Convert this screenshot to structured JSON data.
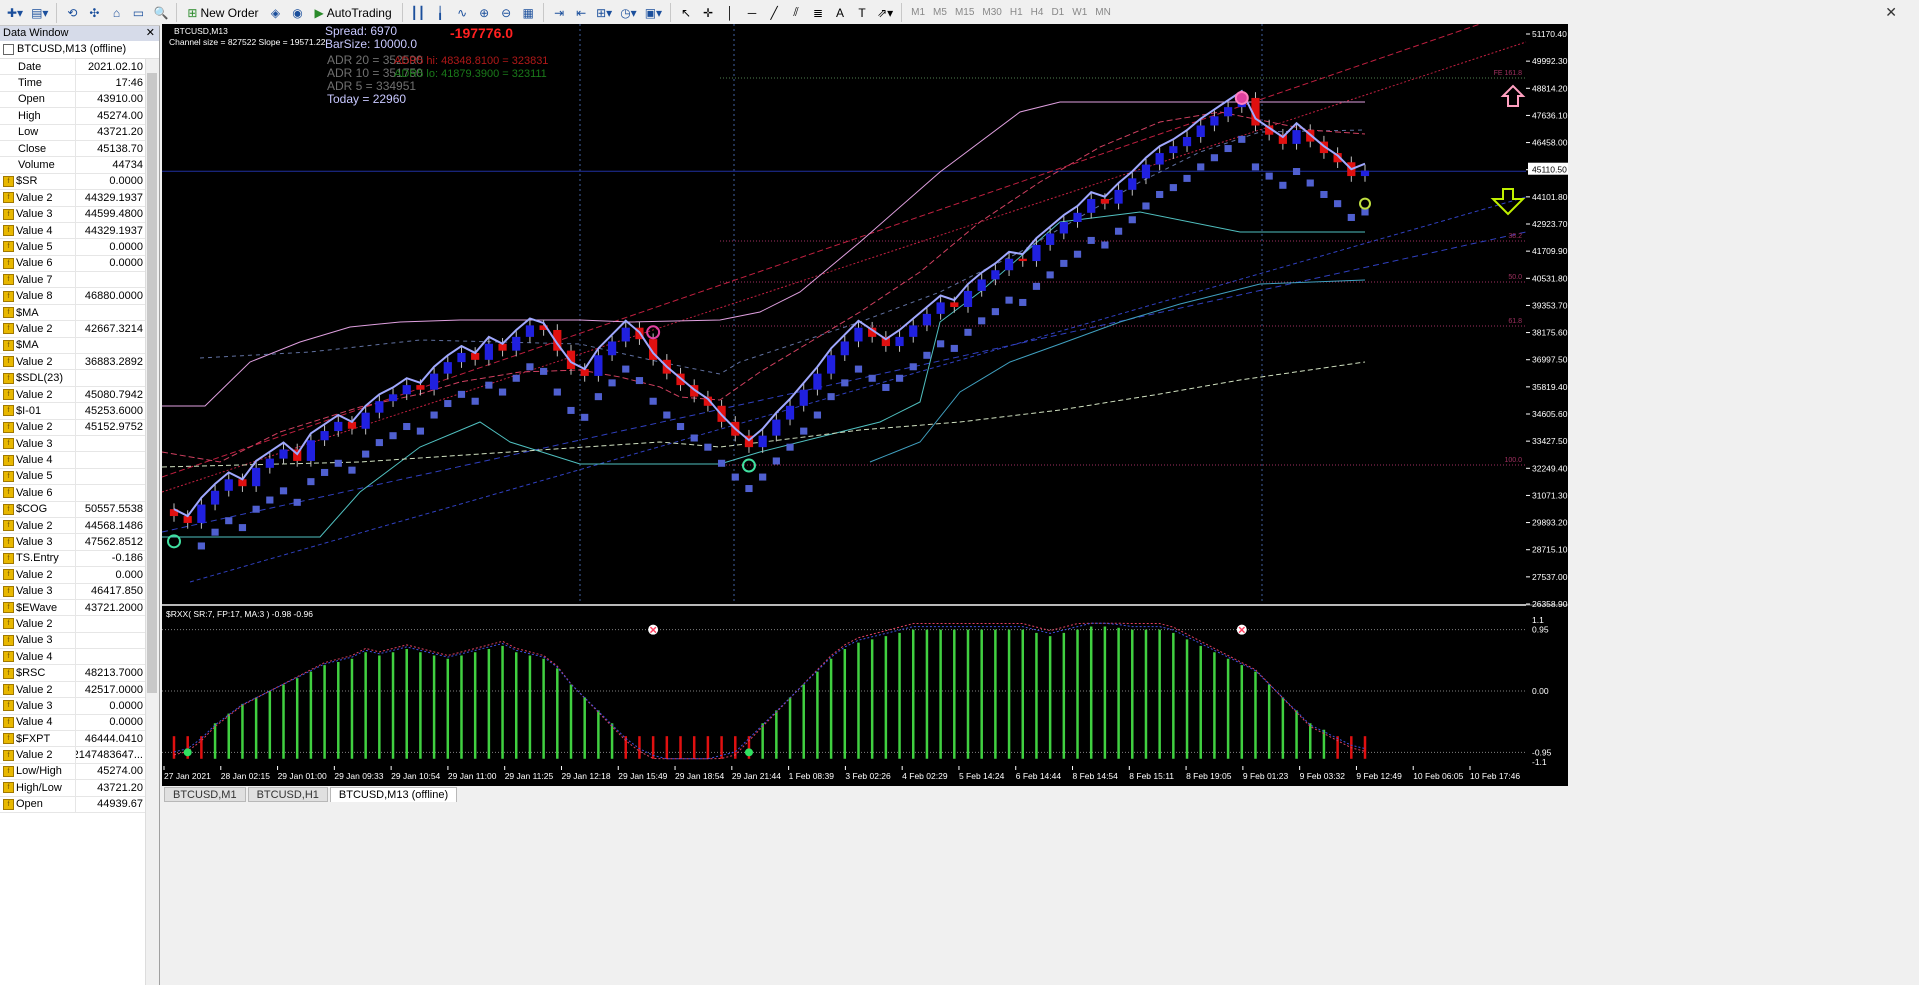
{
  "toolbar": {
    "new_order": "New Order",
    "auto_trading": "AutoTrading",
    "timeframes": [
      "M1",
      "M5",
      "M15",
      "M30",
      "H1",
      "H4",
      "D1",
      "W1",
      "MN"
    ]
  },
  "data_window": {
    "title": "Data Window",
    "symbol": "BTCUSD,M13 (offline)",
    "rows": [
      {
        "name": "Date",
        "value": "2021.02.10",
        "icon": false
      },
      {
        "name": "Time",
        "value": "17:46",
        "icon": false
      },
      {
        "name": "Open",
        "value": "43910.00",
        "icon": false
      },
      {
        "name": "High",
        "value": "45274.00",
        "icon": false
      },
      {
        "name": "Low",
        "value": "43721.20",
        "icon": false
      },
      {
        "name": "Close",
        "value": "45138.70",
        "icon": false
      },
      {
        "name": "Volume",
        "value": "44734",
        "icon": false
      },
      {
        "name": "$SR",
        "value": "0.0000",
        "icon": true
      },
      {
        "name": "Value 2",
        "value": "44329.1937",
        "icon": true
      },
      {
        "name": "Value 3",
        "value": "44599.4800",
        "icon": true
      },
      {
        "name": "Value 4",
        "value": "44329.1937",
        "icon": true
      },
      {
        "name": "Value 5",
        "value": "0.0000",
        "icon": true
      },
      {
        "name": "Value 6",
        "value": "0.0000",
        "icon": true
      },
      {
        "name": "Value 7",
        "value": "",
        "icon": true
      },
      {
        "name": "Value 8",
        "value": "46880.0000",
        "icon": true
      },
      {
        "name": "$MA",
        "value": "",
        "icon": true
      },
      {
        "name": "Value 2",
        "value": "42667.3214",
        "icon": true
      },
      {
        "name": "$MA",
        "value": "",
        "icon": true
      },
      {
        "name": "Value 2",
        "value": "36883.2892",
        "icon": true
      },
      {
        "name": "$SDL(23)",
        "value": "",
        "icon": true
      },
      {
        "name": "Value 2",
        "value": "45080.7942",
        "icon": true
      },
      {
        "name": "$I-01",
        "value": "45253.6000",
        "icon": true
      },
      {
        "name": "Value 2",
        "value": "45152.9752",
        "icon": true
      },
      {
        "name": "Value 3",
        "value": "",
        "icon": true
      },
      {
        "name": "Value 4",
        "value": "",
        "icon": true
      },
      {
        "name": "Value 5",
        "value": "",
        "icon": true
      },
      {
        "name": "Value 6",
        "value": "",
        "icon": true
      },
      {
        "name": "$COG",
        "value": "50557.5538",
        "icon": true
      },
      {
        "name": "Value 2",
        "value": "44568.1486",
        "icon": true
      },
      {
        "name": "Value 3",
        "value": "47562.8512",
        "icon": true
      },
      {
        "name": "TS.Entry",
        "value": "-0.186",
        "icon": true
      },
      {
        "name": "Value 2",
        "value": "0.000",
        "icon": true
      },
      {
        "name": "Value 3",
        "value": "46417.850",
        "icon": true
      },
      {
        "name": "$EWave",
        "value": "43721.2000",
        "icon": true
      },
      {
        "name": "Value 2",
        "value": "",
        "icon": true
      },
      {
        "name": "Value 3",
        "value": "",
        "icon": true
      },
      {
        "name": "Value 4",
        "value": "",
        "icon": true
      },
      {
        "name": "$RSC",
        "value": "48213.7000",
        "icon": true
      },
      {
        "name": "Value 2",
        "value": "42517.0000",
        "icon": true
      },
      {
        "name": "Value 3",
        "value": "0.0000",
        "icon": true
      },
      {
        "name": "Value 4",
        "value": "0.0000",
        "icon": true
      },
      {
        "name": "$FXPT",
        "value": "46444.0410",
        "icon": true
      },
      {
        "name": "Value 2",
        "value": "2147483647...",
        "icon": true
      },
      {
        "name": "Low/High",
        "value": "45274.00",
        "icon": true
      },
      {
        "name": "High/Low",
        "value": "43721.20",
        "icon": true
      },
      {
        "name": "Open",
        "value": "44939.67",
        "icon": true
      }
    ]
  },
  "chart": {
    "symbol_label": "BTCUSD,M13",
    "channel_label": "Channel size = 827522 Slope = 19571.22",
    "spread": "Spread: 6970",
    "barsize": "BarSize: 10000.0",
    "pnl": "-197776.0",
    "adr20": "ADR 20 = 352590",
    "adr10": "ADR 10 = 351750",
    "adr5": "ADR  5  = 334951",
    "today": "Today     = 22960",
    "adr_hi": "ADR5 hi: 48348.8100 = 323831",
    "adr_lo": "ADR5 lo: 41879.3900 = 323111",
    "price_axis": [
      "51170.40",
      "49992.30",
      "48814.20",
      "47636.10",
      "46458.00",
      "45110.50",
      "44101.80",
      "42923.70",
      "41709.90",
      "40531.80",
      "39353.70",
      "38175.60",
      "36997.50",
      "35819.40",
      "34605.60",
      "33427.50",
      "32249.40",
      "31071.30",
      "29893.20",
      "28715.10",
      "27537.00",
      "26358.90"
    ],
    "current_price": "45110.50",
    "fib_labels": [
      "FE 161.8",
      "38.2",
      "50.0",
      "61.8",
      "100.0"
    ],
    "indicator_label": "$RXX( SR:7, FP:17, MA:3 ) -0.98 -0.96",
    "ind_axis": [
      "1.1",
      "0.95",
      "0.00",
      "-0.95",
      "-1.1"
    ],
    "time_axis": [
      "27 Jan 2021",
      "28 Jan 02:15",
      "29 Jan 01:00",
      "29 Jan 09:33",
      "29 Jan 10:54",
      "29 Jan 11:00",
      "29 Jan 11:25",
      "29 Jan 12:18",
      "29 Jan 15:49",
      "29 Jan 18:54",
      "29 Jan 21:44",
      "1 Feb 08:39",
      "3 Feb 02:26",
      "4 Feb 02:29",
      "5 Feb 14:24",
      "6 Feb 14:44",
      "8 Feb 14:54",
      "8 Feb 15:11",
      "8 Feb 19:05",
      "9 Feb 01:23",
      "9 Feb 03:32",
      "9 Feb 12:49",
      "10 Feb 06:05",
      "10 Feb 17:46"
    ]
  },
  "tabs": [
    "BTCUSD,M1",
    "BTCUSD,H1",
    "BTCUSD,M13 (offline)"
  ],
  "chart_data": {
    "type": "candlestick",
    "ylim": [
      26358.9,
      51170.4
    ],
    "closes": [
      30100,
      29800,
      30600,
      31200,
      31700,
      31400,
      32200,
      32600,
      33000,
      32500,
      33400,
      33800,
      34200,
      33900,
      34600,
      35100,
      35400,
      35800,
      35600,
      36300,
      36800,
      37200,
      36900,
      37600,
      37300,
      37900,
      38400,
      38200,
      37300,
      36500,
      36200,
      37100,
      37700,
      38300,
      37800,
      36900,
      36300,
      35800,
      35300,
      34900,
      34200,
      33600,
      33100,
      33600,
      34300,
      34900,
      35600,
      36300,
      37100,
      37700,
      38300,
      37900,
      37500,
      37900,
      38400,
      38900,
      39400,
      39200,
      39900,
      40400,
      40800,
      41300,
      41200,
      41900,
      42400,
      42900,
      43300,
      43900,
      43700,
      44300,
      44800,
      45400,
      45900,
      46200,
      46600,
      47100,
      47500,
      47900,
      48300,
      47100,
      46700,
      46300,
      46900,
      46400,
      45900,
      45500,
      44900,
      45138.7
    ],
    "indicator": [
      -0.9,
      -0.85,
      -0.7,
      -0.5,
      -0.35,
      -0.2,
      -0.1,
      0,
      0.1,
      0.2,
      0.3,
      0.4,
      0.45,
      0.5,
      0.6,
      0.55,
      0.6,
      0.65,
      0.6,
      0.55,
      0.5,
      0.55,
      0.6,
      0.65,
      0.7,
      0.6,
      0.55,
      0.5,
      0.35,
      0.1,
      -0.1,
      -0.3,
      -0.5,
      -0.7,
      -0.85,
      -0.95,
      -1,
      -1,
      -1,
      -1,
      -0.95,
      -0.9,
      -0.7,
      -0.5,
      -0.3,
      -0.1,
      0.1,
      0.3,
      0.5,
      0.65,
      0.75,
      0.8,
      0.85,
      0.9,
      0.95,
      0.95,
      0.95,
      0.95,
      0.95,
      0.95,
      0.95,
      0.95,
      0.95,
      0.9,
      0.85,
      0.9,
      0.95,
      1,
      1,
      0.98,
      0.95,
      0.95,
      0.95,
      0.9,
      0.8,
      0.7,
      0.6,
      0.5,
      0.4,
      0.3,
      0.1,
      -0.1,
      -0.3,
      -0.5,
      -0.6,
      -0.7,
      -0.8,
      -0.85
    ]
  }
}
